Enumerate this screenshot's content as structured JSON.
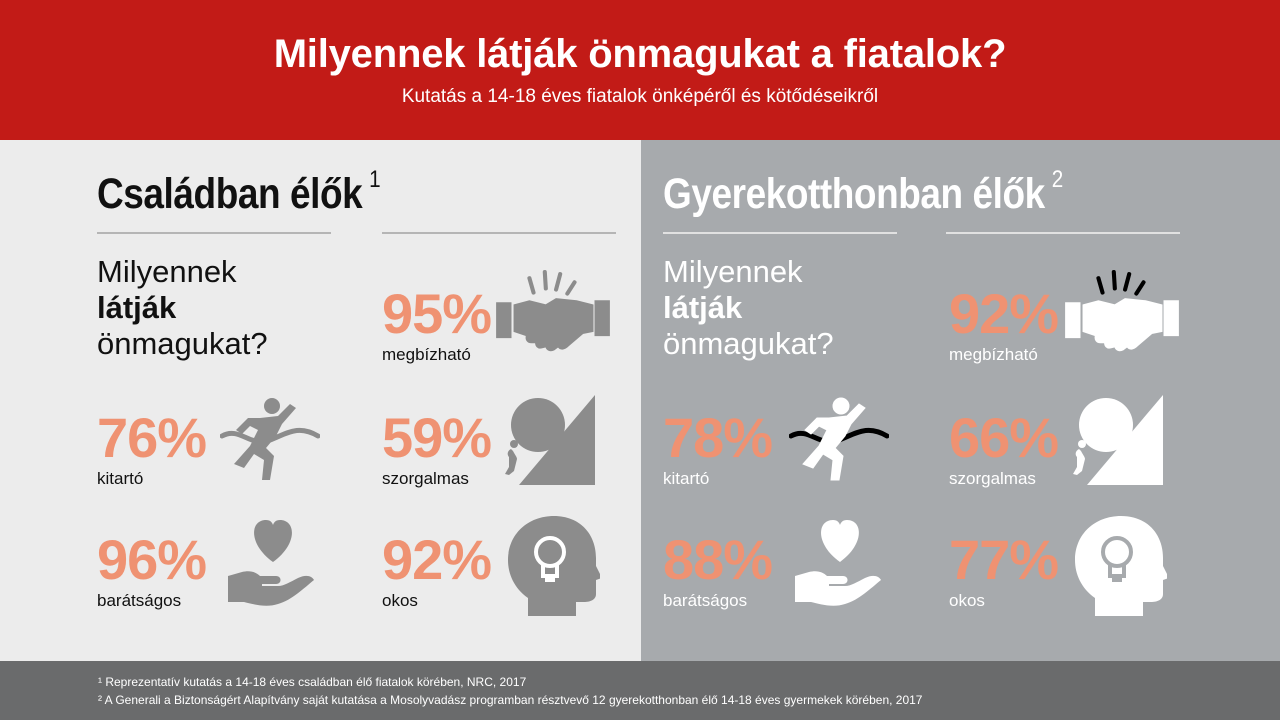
{
  "header": {
    "title": "Milyennek látják önmagukat a fiatalok?",
    "subtitle": "Kutatás a 14-18 éves fiatalok önképéről és kötődéseikről"
  },
  "colors": {
    "accent_red": "#c21b17",
    "stat_orange": "#ef9272",
    "left_bg": "#ececec",
    "right_bg": "#a7aaad",
    "footer_bg": "#6a6b6c"
  },
  "left": {
    "title": "Családban élők",
    "note": "1",
    "question": {
      "line1": "Milyennek",
      "line2": "látják",
      "line3": "önmagukat?"
    },
    "stats": {
      "trustworthy": {
        "value": "95%",
        "label": "megbízható",
        "icon": "handshake-icon"
      },
      "persistent": {
        "value": "76%",
        "label": "kitartó",
        "icon": "runner-finish-icon"
      },
      "diligent": {
        "value": "59%",
        "label": "szorgalmas",
        "icon": "boulder-push-icon"
      },
      "friendly": {
        "value": "96%",
        "label": "barátságos",
        "icon": "heart-hand-icon"
      },
      "smart": {
        "value": "92%",
        "label": "okos",
        "icon": "head-lightbulb-icon"
      }
    }
  },
  "right": {
    "title": "Gyerekotthonban élők",
    "note": "2",
    "question": {
      "line1": "Milyennek",
      "line2": "látják",
      "line3": "önmagukat?"
    },
    "stats": {
      "trustworthy": {
        "value": "92%",
        "label": "megbízható",
        "icon": "handshake-icon"
      },
      "persistent": {
        "value": "78%",
        "label": "kitartó",
        "icon": "runner-finish-icon"
      },
      "diligent": {
        "value": "66%",
        "label": "szorgalmas",
        "icon": "boulder-push-icon"
      },
      "friendly": {
        "value": "88%",
        "label": "barátságos",
        "icon": "heart-hand-icon"
      },
      "smart": {
        "value": "77%",
        "label": "okos",
        "icon": "head-lightbulb-icon"
      }
    }
  },
  "footer": {
    "note1": "¹ Reprezentatív kutatás a 14-18 éves családban élő fiatalok körében, NRC, 2017",
    "note2": "² A Generali a Biztonságért Alapítvány saját kutatása a Mosolyvadász programban résztvevő 12 gyerekotthonban élő 14-18 éves gyermekek körében, 2017"
  }
}
